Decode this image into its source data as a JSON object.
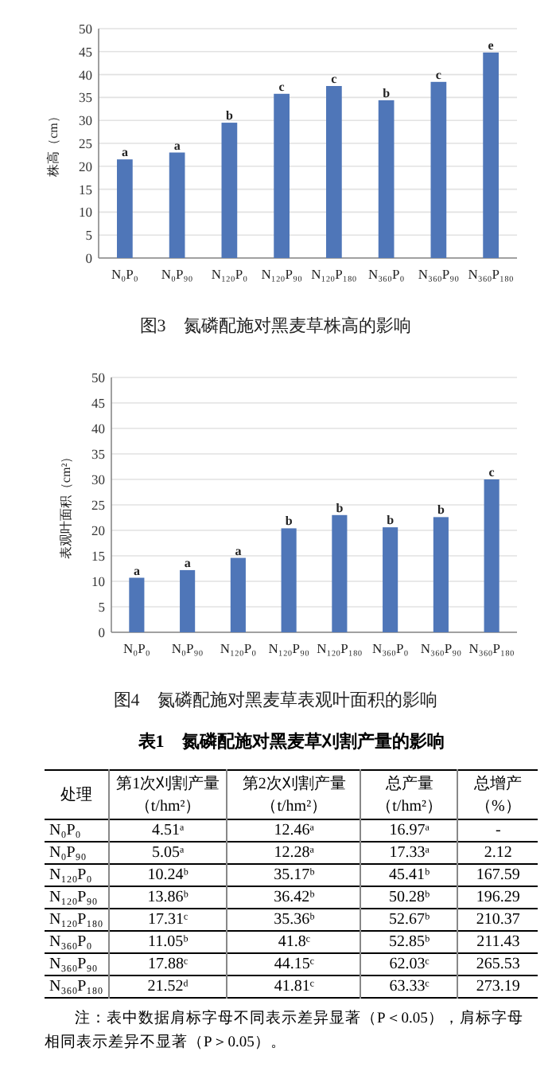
{
  "chart_data": [
    {
      "type": "bar",
      "title": "图3　氮磷配施对黑麦草株高的影响",
      "ylabel": "株高（cm）",
      "categories": [
        "N₀P₀",
        "N₀P₉₀",
        "N₁₂₀P₀",
        "N₁₂₀P₉₀",
        "N₁₂₀P₁₈₀",
        "N₃₆₀P₀",
        "N₃₆₀P₉₀",
        "N₃₆₀P₁₈₀"
      ],
      "values": [
        21.5,
        23,
        29.5,
        35.8,
        37.5,
        34.4,
        38.4,
        44.8
      ],
      "color": "#4f76b8",
      "ylim": [
        0,
        50
      ],
      "yticks": [
        0,
        5,
        10,
        15,
        20,
        25,
        30,
        35,
        40,
        45,
        50
      ],
      "grid": "y",
      "annotations": [
        {
          "text": "a",
          "x": "N₀P₀",
          "y": 21.5
        },
        {
          "text": "a",
          "x": "N₀P₉₀",
          "y": 23
        },
        {
          "text": "b",
          "x": "N₁₂₀P₀",
          "y": 29.5
        },
        {
          "text": "c",
          "x": "N₁₂₀P₉₀",
          "y": 35.8
        },
        {
          "text": "c",
          "x": "N₁₂₀P₁₈₀",
          "y": 37.5
        },
        {
          "text": "b",
          "x": "N₃₆₀P₀",
          "y": 34.4
        },
        {
          "text": "c",
          "x": "N₃₆₀P₉₀",
          "y": 38.4
        },
        {
          "text": "e",
          "x": "N₃₆₀P₁₈₀",
          "y": 44.8
        }
      ]
    },
    {
      "type": "bar",
      "title": "图4　氮磷配施对黑麦草表观叶面积的影响",
      "ylabel": "表观叶面积（cm²）",
      "categories": [
        "N₀P₀",
        "N₀P₉₀",
        "N₁₂₀P₀",
        "N₁₂₀P₉₀",
        "N₁₂₀P₁₈₀",
        "N₃₆₀P₀",
        "N₃₆₀P₉₀",
        "N₃₆₀P₁₈₀"
      ],
      "values": [
        10.7,
        12.2,
        14.6,
        20.4,
        23,
        20.6,
        22.6,
        30
      ],
      "color": "#4f76b8",
      "ylim": [
        0,
        50
      ],
      "yticks": [
        0,
        5,
        10,
        15,
        20,
        25,
        30,
        35,
        40,
        45,
        50
      ],
      "grid": "y",
      "annotations": [
        {
          "text": "a",
          "x": "N₀P₀",
          "y": 10.7
        },
        {
          "text": "a",
          "x": "N₀P₉₀",
          "y": 12.2
        },
        {
          "text": "a",
          "x": "N₁₂₀P₀",
          "y": 14.6
        },
        {
          "text": "b",
          "x": "N₁₂₀P₉₀",
          "y": 20.4
        },
        {
          "text": "b",
          "x": "N₁₂₀P₁₈₀",
          "y": 23
        },
        {
          "text": "b",
          "x": "N₃₆₀P₀",
          "y": 20.6
        },
        {
          "text": "b",
          "x": "N₃₆₀P₉₀",
          "y": 22.6
        },
        {
          "text": "c",
          "x": "N₃₆₀P₁₈₀",
          "y": 30
        }
      ]
    },
    {
      "type": "other",
      "title": "表1　氮磷配施对黑麦草刈割产量的影响",
      "ylabel": "处理",
      "categories": [
        "第1次刈割产量（t/hm²）",
        "第2次刈割产量（t/hm²）",
        "总产量（t/hm²）",
        "总增产（%）"
      ],
      "y_categories": [
        "N₀P₀",
        "N₀P₉₀",
        "N₁₂₀P₀",
        "N₁₂₀P₉₀",
        "N₁₂₀P₁₈₀",
        "N₃₆₀P₀",
        "N₃₆₀P₉₀",
        "N₃₆₀P₁₈₀"
      ],
      "cell_labels": [
        [
          "4.51ᵃ",
          "12.46ᵃ",
          "16.97ᵃ",
          "-"
        ],
        [
          "5.05ᵃ",
          "12.28ᵃ",
          "17.33ᵃ",
          "2.12"
        ],
        [
          "10.24ᵇ",
          "35.17ᵇ",
          "45.41ᵇ",
          "167.59"
        ],
        [
          "13.86ᵇ",
          "36.42ᵇ",
          "50.28ᵇ",
          "196.29"
        ],
        [
          "17.31ᶜ",
          "35.36ᵇ",
          "52.67ᵇ",
          "210.37"
        ],
        [
          "11.05ᵇ",
          "41.8ᶜ",
          "52.85ᵇ",
          "211.43"
        ],
        [
          "17.88ᶜ",
          "44.15ᶜ",
          "62.03ᶜ",
          "265.53"
        ],
        [
          "21.52ᵈ",
          "41.81ᶜ",
          "63.33ᶜ",
          "273.19"
        ]
      ],
      "annotations": [
        "注：表中数据肩标字母不同表示差异显著（P＜0.05），肩标字母相同表示差异不显著（P＞0.05）。"
      ]
    }
  ]
}
